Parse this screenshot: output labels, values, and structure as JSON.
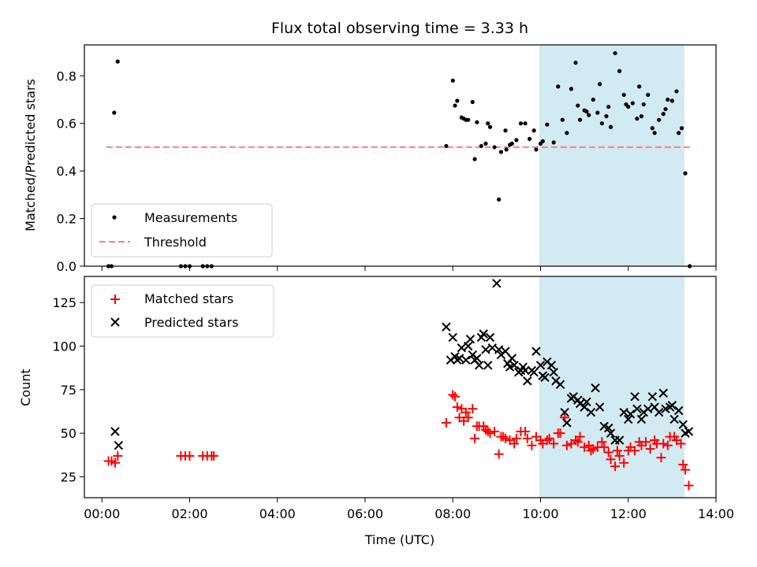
{
  "title": "Flux total observing time = 3.33 h",
  "xlabel": "Time (UTC)",
  "top_ylabel": "Matched/Predicted stars",
  "bottom_ylabel": "Count",
  "legend_top": [
    "Measurements",
    "Threshold"
  ],
  "legend_bottom": [
    "Matched stars",
    "Predicted stars"
  ],
  "colors": {
    "measurements": "#000000",
    "threshold": "#ff7f7f",
    "matched": "#ff0000",
    "predicted": "#000000",
    "shade": "#add8e6"
  },
  "chart_data": [
    {
      "type": "scatter",
      "panel": "top",
      "ylabel": "Matched/Predicted stars",
      "xlim": [
        -0.4,
        14.0
      ],
      "ylim": [
        0.0,
        0.93
      ],
      "xticks": [
        "00:00",
        "02:00",
        "04:00",
        "06:00",
        "08:00",
        "10:00",
        "12:00",
        "14:00"
      ],
      "xtick_values": [
        0,
        2,
        4,
        6,
        8,
        10,
        12,
        14
      ],
      "yticks": [
        "0.0",
        "0.2",
        "0.4",
        "0.6",
        "0.8"
      ],
      "ytick_values": [
        0,
        0.2,
        0.4,
        0.6,
        0.8
      ],
      "grid": false,
      "legend_position": "lower-left",
      "shaded_span": [
        9.97,
        13.28
      ],
      "threshold": {
        "name": "Threshold",
        "y": 0.5,
        "x_range": [
          0.1,
          13.4
        ],
        "style": "dashed"
      },
      "series": [
        {
          "name": "Measurements",
          "x": [
            0.15,
            0.22,
            0.28,
            0.36,
            1.8,
            1.9,
            2.0,
            2.3,
            2.4,
            2.5,
            7.85,
            8.0,
            8.05,
            8.1,
            8.2,
            8.25,
            8.3,
            8.35,
            8.45,
            8.5,
            8.55,
            8.65,
            8.75,
            8.8,
            8.85,
            8.95,
            9.05,
            9.1,
            9.2,
            9.22,
            9.3,
            9.35,
            9.45,
            9.55,
            9.65,
            9.75,
            9.85,
            9.9,
            10.0,
            10.05,
            10.15,
            10.3,
            10.4,
            10.5,
            10.6,
            10.7,
            10.8,
            10.85,
            10.9,
            11.0,
            11.05,
            11.1,
            11.2,
            11.3,
            11.35,
            11.4,
            11.5,
            11.55,
            11.6,
            11.7,
            11.8,
            11.9,
            11.95,
            12.0,
            12.1,
            12.2,
            12.25,
            12.3,
            12.35,
            12.45,
            12.55,
            12.6,
            12.7,
            12.8,
            12.85,
            12.9,
            13.0,
            13.1,
            13.15,
            13.22,
            13.3,
            13.4
          ],
          "y": [
            0.0,
            0.0,
            0.645,
            0.86,
            0.0,
            0.0,
            0.0,
            0.0,
            0.0,
            0.0,
            0.505,
            0.78,
            0.675,
            0.695,
            0.625,
            0.62,
            0.615,
            0.615,
            0.69,
            0.45,
            0.605,
            0.505,
            0.515,
            0.6,
            0.585,
            0.5,
            0.28,
            0.48,
            0.57,
            0.49,
            0.51,
            0.515,
            0.53,
            0.6,
            0.6,
            0.535,
            0.57,
            0.49,
            0.515,
            0.525,
            0.595,
            0.52,
            0.755,
            0.615,
            0.56,
            0.745,
            0.855,
            0.675,
            0.615,
            0.655,
            0.65,
            0.635,
            0.7,
            0.645,
            0.765,
            0.6,
            0.63,
            0.67,
            0.585,
            0.895,
            0.82,
            0.72,
            0.68,
            0.67,
            0.685,
            0.62,
            0.755,
            0.63,
            0.68,
            0.72,
            0.58,
            0.56,
            0.615,
            0.64,
            0.66,
            0.7,
            0.695,
            0.735,
            0.56,
            0.58,
            0.39,
            0.0
          ]
        }
      ]
    },
    {
      "type": "scatter",
      "panel": "bottom",
      "ylabel": "Count",
      "xlabel": "Time (UTC)",
      "xlim": [
        -0.4,
        14.0
      ],
      "ylim": [
        13,
        140
      ],
      "xticks": [
        "00:00",
        "02:00",
        "04:00",
        "06:00",
        "08:00",
        "10:00",
        "12:00",
        "14:00"
      ],
      "xtick_values": [
        0,
        2,
        4,
        6,
        8,
        10,
        12,
        14
      ],
      "yticks": [
        "25",
        "50",
        "75",
        "100",
        "125"
      ],
      "ytick_values": [
        25,
        50,
        75,
        100,
        125
      ],
      "grid": false,
      "legend_position": "upper-left",
      "shaded_span": [
        9.97,
        13.28
      ],
      "series": [
        {
          "name": "Matched stars",
          "marker": "plus",
          "x": [
            0.15,
            0.22,
            0.3,
            0.36,
            1.8,
            1.9,
            2.0,
            2.3,
            2.4,
            2.5,
            2.55,
            7.85,
            8.0,
            8.05,
            8.1,
            8.15,
            8.2,
            8.25,
            8.3,
            8.35,
            8.45,
            8.5,
            8.55,
            8.6,
            8.7,
            8.75,
            8.8,
            8.85,
            8.95,
            9.05,
            9.1,
            9.15,
            9.2,
            9.3,
            9.4,
            9.45,
            9.55,
            9.65,
            9.7,
            9.8,
            9.9,
            10.0,
            10.05,
            10.15,
            10.2,
            10.3,
            10.4,
            10.45,
            10.55,
            10.6,
            10.7,
            10.8,
            10.85,
            10.9,
            11.0,
            11.1,
            11.15,
            11.2,
            11.3,
            11.4,
            11.45,
            11.55,
            11.6,
            11.7,
            11.75,
            11.8,
            11.9,
            12.0,
            12.05,
            12.15,
            12.25,
            12.3,
            12.4,
            12.5,
            12.6,
            12.65,
            12.75,
            12.8,
            12.9,
            12.95,
            13.05,
            13.1,
            13.2,
            13.25,
            13.3,
            13.38
          ],
          "y": [
            34,
            34,
            33,
            37,
            37,
            37,
            37,
            37,
            37,
            37,
            37,
            56,
            72,
            71,
            65,
            59,
            64,
            57,
            62,
            59,
            64,
            47,
            54,
            54,
            54,
            52,
            51,
            50,
            51,
            38,
            48,
            48,
            47,
            46,
            44,
            47,
            51,
            51,
            47,
            43,
            48,
            46,
            44,
            46,
            47,
            44,
            50,
            50,
            59,
            43,
            44,
            46,
            45,
            48,
            42,
            43,
            40,
            41,
            42,
            45,
            42,
            39,
            35,
            31,
            40,
            37,
            33,
            40,
            42,
            40,
            45,
            43,
            45,
            41,
            46,
            44,
            36,
            44,
            43,
            48,
            48,
            46,
            44,
            32,
            29,
            20
          ]
        },
        {
          "name": "Predicted stars",
          "marker": "x",
          "x": [
            0.3,
            0.38,
            7.85,
            7.95,
            8.0,
            8.05,
            8.1,
            8.15,
            8.2,
            8.3,
            8.35,
            8.4,
            8.45,
            8.5,
            8.55,
            8.6,
            8.65,
            8.7,
            8.75,
            8.8,
            8.85,
            8.9,
            9.0,
            9.05,
            9.1,
            9.2,
            9.25,
            9.3,
            9.35,
            9.4,
            9.5,
            9.55,
            9.6,
            9.65,
            9.7,
            9.8,
            9.85,
            9.9,
            10.0,
            10.05,
            10.1,
            10.15,
            10.25,
            10.3,
            10.35,
            10.45,
            10.55,
            10.6,
            10.7,
            10.75,
            10.85,
            10.9,
            11.0,
            11.05,
            11.15,
            11.25,
            11.35,
            11.45,
            11.55,
            11.6,
            11.7,
            11.8,
            11.9,
            12.0,
            12.05,
            12.15,
            12.2,
            12.3,
            12.35,
            12.45,
            12.55,
            12.6,
            12.7,
            12.8,
            12.85,
            12.95,
            13.0,
            13.05,
            13.15,
            13.25,
            13.3,
            13.38
          ],
          "y": [
            51,
            43,
            111,
            92,
            105,
            94,
            92,
            93,
            99,
            92,
            100,
            104,
            95,
            92,
            93,
            89,
            105,
            107,
            98,
            89,
            105,
            99,
            136,
            98,
            95,
            97,
            90,
            88,
            93,
            89,
            85,
            86,
            88,
            86,
            80,
            86,
            85,
            97,
            89,
            83,
            82,
            91,
            89,
            85,
            80,
            78,
            62,
            56,
            70,
            71,
            69,
            67,
            65,
            68,
            62,
            76,
            65,
            54,
            53,
            50,
            46,
            46,
            62,
            58,
            61,
            71,
            64,
            58,
            62,
            64,
            71,
            65,
            62,
            73,
            64,
            65,
            66,
            58,
            63,
            55,
            50,
            51
          ]
        }
      ]
    }
  ]
}
